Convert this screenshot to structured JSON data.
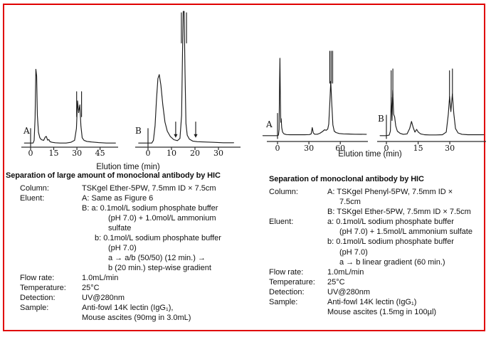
{
  "frame": {
    "border_color": "#e00000",
    "background": "#ffffff"
  },
  "chart_data": [
    {
      "type": "line",
      "group": "left-figure",
      "title": "Separation of large amount of monoclonal antibody by HIC",
      "xlabel": "Elution time (min)",
      "ylabel": "",
      "x_unit": "min",
      "panels": [
        {
          "label": "A",
          "x_ticks": [
            0,
            15,
            30,
            45
          ],
          "injection": {
            "t": 0,
            "height": 12
          },
          "trace": [
            [
              -4,
              1
            ],
            [
              0,
              1
            ],
            [
              1.6,
              1
            ],
            [
              2.3,
              3
            ],
            [
              2.9,
              20
            ],
            [
              3.4,
              57
            ],
            [
              3.9,
              52
            ],
            [
              4.4,
              22
            ],
            [
              5.1,
              9
            ],
            [
              6,
              5
            ],
            [
              7,
              3.5
            ],
            [
              8.5,
              3
            ],
            [
              9.5,
              5.5
            ],
            [
              10.2,
              6
            ],
            [
              11,
              3.2
            ],
            [
              11.8,
              3.6
            ],
            [
              12.6,
              2
            ],
            [
              14,
              1.5
            ],
            [
              16,
              1.2
            ],
            [
              19,
              1
            ],
            [
              23,
              1
            ],
            [
              26,
              1.5
            ],
            [
              28.5,
              3
            ],
            [
              29.7,
              12
            ],
            [
              30.4,
              33
            ],
            [
              31.1,
              24
            ],
            [
              31.9,
              30
            ],
            [
              32.6,
              14
            ],
            [
              33.4,
              5
            ],
            [
              34.6,
              3
            ],
            [
              36.5,
              2.2
            ],
            [
              39.5,
              1.8
            ],
            [
              44,
              1.3
            ],
            [
              49,
              1
            ],
            [
              55,
              1
            ]
          ],
          "offscale_marks": [
            [
              29.8,
              21,
              40
            ],
            [
              33.0,
              21,
              40
            ]
          ],
          "arrows": []
        },
        {
          "label": "B",
          "x_ticks": [
            0,
            10,
            20,
            30
          ],
          "injection": {
            "t": 0,
            "height": 12
          },
          "trace": [
            [
              -4,
              1
            ],
            [
              0,
              1
            ],
            [
              1.6,
              1
            ],
            [
              2.3,
              3
            ],
            [
              3.0,
              14
            ],
            [
              3.6,
              34
            ],
            [
              4.2,
              50
            ],
            [
              4.8,
              53
            ],
            [
              5.5,
              45
            ],
            [
              6.3,
              30
            ],
            [
              7.2,
              17
            ],
            [
              8.2,
              10
            ],
            [
              9.5,
              6
            ],
            [
              11,
              3.5
            ],
            [
              12.5,
              2.8
            ],
            [
              13.6,
              4.5
            ],
            [
              14.3,
              22
            ],
            [
              14.7,
              70
            ],
            [
              15.0,
              101
            ],
            [
              15.4,
              101
            ],
            [
              15.75,
              55
            ],
            [
              16.15,
              16
            ],
            [
              16.7,
              7
            ],
            [
              17.6,
              4
            ],
            [
              19,
              2.5
            ],
            [
              21,
              2
            ],
            [
              24,
              1.8
            ],
            [
              28,
              1.5
            ],
            [
              32,
              1.2
            ],
            [
              36.5,
              1.2
            ]
          ],
          "offscale_marks": [
            [
              14.2,
              77,
              100
            ],
            [
              16.4,
              77,
              100
            ]
          ],
          "arrows": [
            [
              11.8,
              17,
              5
            ],
            [
              20.3,
              17,
              5
            ]
          ]
        }
      ]
    },
    {
      "type": "line",
      "group": "right-figure",
      "title": "Separation of monoclonal antibody by HIC",
      "xlabel": "Elution time (min)",
      "ylabel": "",
      "x_unit": "min",
      "panels": [
        {
          "label": "A",
          "x_ticks": [
            0,
            30,
            60
          ],
          "injection": {
            "t": 0,
            "height": 26
          },
          "trace": [
            [
              -14,
              1
            ],
            [
              0,
              1
            ],
            [
              0.9,
              1.5
            ],
            [
              1.5,
              8
            ],
            [
              2.0,
              62
            ],
            [
              2.3,
              88
            ],
            [
              2.7,
              42
            ],
            [
              3.1,
              16
            ],
            [
              3.5,
              20
            ],
            [
              4.0,
              10
            ],
            [
              4.8,
              5
            ],
            [
              6.2,
              3
            ],
            [
              8.5,
              2.2
            ],
            [
              12,
              2
            ],
            [
              16,
              2
            ],
            [
              21,
              2
            ],
            [
              26,
              2
            ],
            [
              30.5,
              2.2
            ],
            [
              32.2,
              3
            ],
            [
              33.2,
              10
            ],
            [
              34.2,
              4
            ],
            [
              35.5,
              2.6
            ],
            [
              38,
              2.6
            ],
            [
              40.5,
              3.6
            ],
            [
              43,
              5.6
            ],
            [
              45,
              7.6
            ],
            [
              46.5,
              7
            ],
            [
              48,
              8.5
            ],
            [
              49,
              14
            ],
            [
              50.1,
              40
            ],
            [
              50.9,
              62
            ],
            [
              51.9,
              36
            ],
            [
              52.9,
              13
            ],
            [
              54.2,
              6
            ],
            [
              56,
              4.4
            ],
            [
              59,
              3.4
            ],
            [
              63,
              3
            ],
            [
              68,
              2.8
            ],
            [
              74,
              2.6
            ],
            [
              85,
              2.5
            ]
          ],
          "offscale_marks": [
            [
              49.9,
              60,
              96
            ],
            [
              51.3,
              60,
              96
            ],
            [
              52.7,
              60,
              96
            ]
          ],
          "arrows": []
        },
        {
          "label": "B",
          "x_ticks": [
            0,
            15,
            30
          ],
          "injection": {
            "t": 0,
            "height": 24
          },
          "trace": [
            [
              -3,
              1
            ],
            [
              0,
              1
            ],
            [
              1.3,
              1.5
            ],
            [
              1.9,
              6
            ],
            [
              2.3,
              44
            ],
            [
              2.65,
              18
            ],
            [
              3.0,
              52
            ],
            [
              3.45,
              25
            ],
            [
              3.9,
              22
            ],
            [
              4.4,
              12
            ],
            [
              5.2,
              6
            ],
            [
              6.5,
              3.5
            ],
            [
              8,
              2.5
            ],
            [
              9.8,
              3
            ],
            [
              11,
              9
            ],
            [
              11.9,
              17
            ],
            [
              12.7,
              10
            ],
            [
              13.5,
              5
            ],
            [
              14.3,
              8
            ],
            [
              15.1,
              5
            ],
            [
              16.2,
              3
            ],
            [
              18,
              2
            ],
            [
              20.5,
              1.8
            ],
            [
              23.5,
              1.8
            ],
            [
              26.5,
              2
            ],
            [
              28.3,
              5
            ],
            [
              29.3,
              25
            ],
            [
              29.9,
              45
            ],
            [
              30.5,
              28
            ],
            [
              31.2,
              48
            ],
            [
              31.9,
              26
            ],
            [
              32.7,
              9
            ],
            [
              33.9,
              4
            ],
            [
              35.8,
              2.5
            ],
            [
              38.5,
              2
            ],
            [
              42,
              2
            ],
            [
              46,
              2
            ]
          ],
          "offscale_marks": [
            [
              2.25,
              40,
              74
            ],
            [
              3.05,
              46,
              76
            ],
            [
              29.85,
              40,
              74
            ],
            [
              31.25,
              44,
              76
            ]
          ],
          "arrows": []
        }
      ]
    }
  ],
  "sections": {
    "left": {
      "title": "Separation of large amount of monoclonal antibody by HIC",
      "specs": [
        {
          "label": "Column:",
          "lines": [
            "TSKgel Ether-5PW, 7.5mm ID × 7.5cm"
          ]
        },
        {
          "label": "Eluent:",
          "lines": [
            "A: Same as Figure 6",
            "B: a: 0.1mol/L sodium phosphate buffer",
            "(pH 7.0) + 1.0mol/L ammonium",
            "sulfate",
            "b: 0.1mol/L sodium phosphate buffer",
            "(pH 7.0)",
            "a → a/b (50/50) (12 min.) →",
            "b (20 min.) step-wise gradient"
          ]
        },
        {
          "label": "Flow rate:",
          "lines": [
            "1.0mL/min"
          ]
        },
        {
          "label": "Temperature:",
          "lines": [
            "25°C"
          ]
        },
        {
          "label": "Detection:",
          "lines": [
            "UV@280nm"
          ]
        },
        {
          "label": "Sample:",
          "lines": [
            "Anti-fowl 14K lectin (IgG₁),",
            "Mouse ascites (90mg in 3.0mL)"
          ]
        }
      ]
    },
    "right": {
      "title": "Separation of monoclonal antibody by HIC",
      "specs": [
        {
          "label": "Column:",
          "lines": [
            "A: TSKgel Phenyl-5PW, 7.5mm ID ×",
            "7.5cm",
            "B: TSKgel Ether-5PW, 7.5mm ID × 7.5cm"
          ]
        },
        {
          "label": "Eluent:",
          "lines": [
            "a: 0.1mol/L sodium phosphate buffer",
            "(pH 7.0) + 1.5mol/L ammonium sulfate",
            "b: 0.1mol/L sodium phosphate buffer",
            "(pH 7.0)",
            "a → b linear gradient (60 min.)"
          ]
        },
        {
          "label": "Flow rate:",
          "lines": [
            "1.0mL/min"
          ]
        },
        {
          "label": "Temperature:",
          "lines": [
            "25°C"
          ]
        },
        {
          "label": "Detection:",
          "lines": [
            "UV@280nm"
          ]
        },
        {
          "label": "Sample:",
          "lines": [
            "Anti-fowl 14K lectin (IgG₁)",
            "Mouse ascites (1.5mg in 100µl)"
          ]
        }
      ]
    }
  }
}
